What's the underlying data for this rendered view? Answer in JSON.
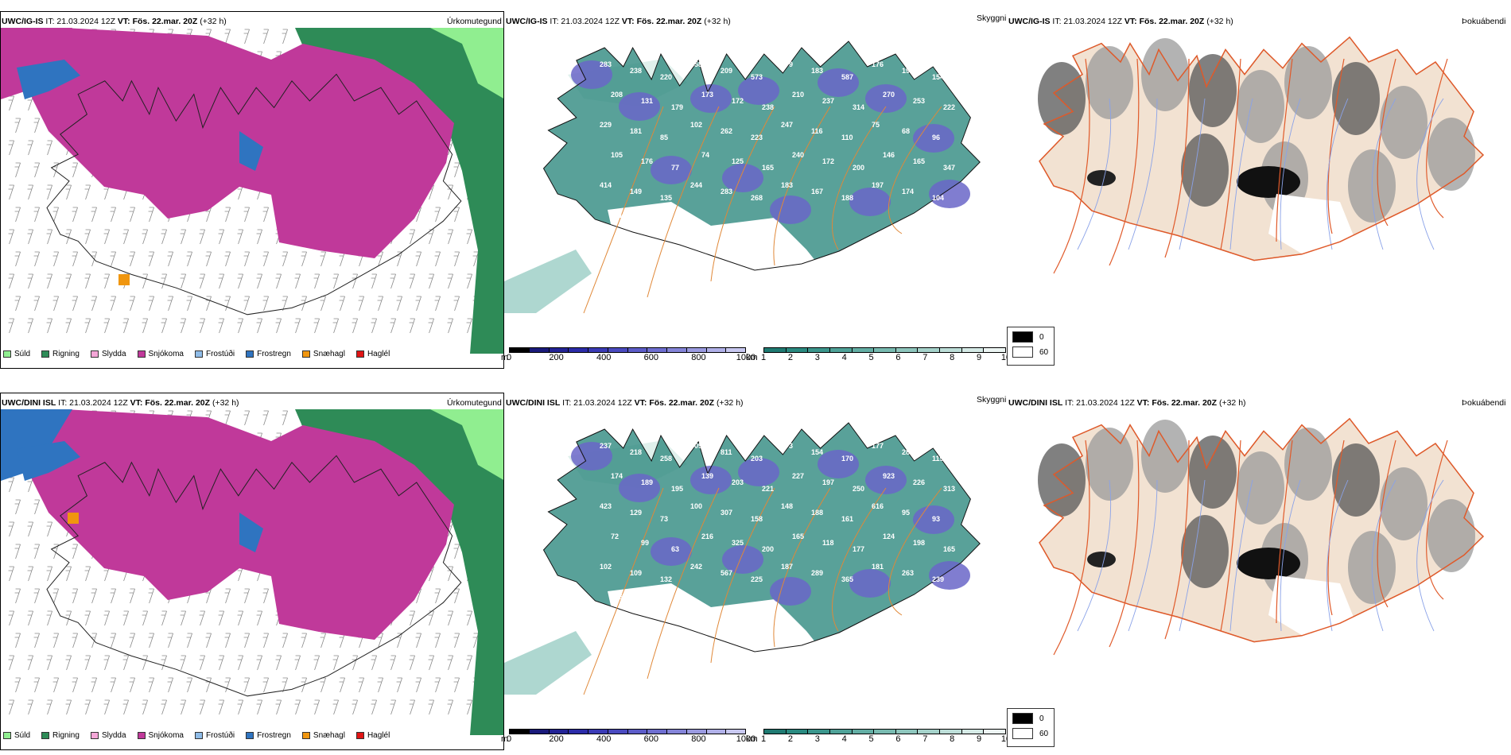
{
  "rows": [
    {
      "model": "UWC/IG-IS",
      "it": "21.03.2024 12Z",
      "vt": "Fös. 22.mar. 20Z",
      "lead": "(+32 h)",
      "cloud_labels": [
        "283",
        "238",
        "220",
        "358",
        "209",
        "573",
        "179",
        "183",
        "587",
        "176",
        "195",
        "154",
        "208",
        "131",
        "179",
        "173",
        "172",
        "238",
        "210",
        "237",
        "314",
        "270",
        "253",
        "222",
        "229",
        "181",
        "85",
        "102",
        "262",
        "223",
        "247",
        "116",
        "110",
        "75",
        "68",
        "96",
        "105",
        "176",
        "77",
        "74",
        "125",
        "165",
        "240",
        "172",
        "200",
        "146",
        "165",
        "347",
        "414",
        "149",
        "135",
        "244",
        "283",
        "268",
        "183",
        "167",
        "188",
        "197",
        "174",
        "104",
        "101",
        "165",
        "112"
      ]
    },
    {
      "model": "UWC/DINI ISL",
      "it": "21.03.2024 12Z",
      "vt": "Fös. 22.mar. 20Z",
      "lead": "(+32 h)",
      "cloud_labels": [
        "237",
        "218",
        "258",
        "709",
        "811",
        "203",
        "173",
        "154",
        "170",
        "177",
        "282",
        "119",
        "174",
        "189",
        "195",
        "139",
        "203",
        "221",
        "227",
        "197",
        "250",
        "923",
        "226",
        "313",
        "423",
        "129",
        "73",
        "100",
        "307",
        "158",
        "148",
        "188",
        "161",
        "616",
        "95",
        "93",
        "72",
        "99",
        "63",
        "216",
        "325",
        "200",
        "165",
        "118",
        "177",
        "124",
        "198",
        "165",
        "102",
        "109",
        "132",
        "242",
        "567",
        "225",
        "187",
        "289",
        "365",
        "181",
        "263",
        "239",
        "246",
        "222",
        "312"
      ]
    }
  ],
  "panel_titles": {
    "precip": "Úrkomutegund",
    "cloud": "Skyggni",
    "fog": "Þokuábendi"
  },
  "precip_legend": [
    {
      "label": "Súld",
      "color": "#90ee90"
    },
    {
      "label": "Rigning",
      "color": "#2e8b57"
    },
    {
      "label": "Slydda",
      "color": "#f4a6d7"
    },
    {
      "label": "Snjókoma",
      "color": "#c0399a"
    },
    {
      "label": "Frostúði",
      "color": "#8fbce8"
    },
    {
      "label": "Frostregn",
      "color": "#2f74c0"
    },
    {
      "label": "Snæhagl",
      "color": "#f0960f"
    },
    {
      "label": "Haglél",
      "color": "#e01414"
    }
  ],
  "colorbar_m": {
    "unit": "m",
    "ticks": [
      "0",
      "200",
      "400",
      "600",
      "800",
      "1000"
    ],
    "colors": [
      "#000000",
      "#1a1a7a",
      "#232395",
      "#2b2ba8",
      "#3a3ab5",
      "#4a4abf",
      "#5c5cc8",
      "#6e6ed0",
      "#8484d8",
      "#9a9ae0",
      "#b0b0e8",
      "#c8c8f0"
    ]
  },
  "colorbar_km": {
    "unit": "km",
    "ticks": [
      "1",
      "2",
      "3",
      "4",
      "5",
      "6",
      "7",
      "8",
      "9",
      "10"
    ],
    "colors": [
      "#1f7a72",
      "#2a8a80",
      "#3b968c",
      "#4fa298",
      "#63aea4",
      "#78bab0",
      "#8ec6bd",
      "#a5d2ca",
      "#bdded8",
      "#d5eae6",
      "#ecf5f3"
    ]
  },
  "fog_key": [
    {
      "label": "0",
      "color": "#000000"
    },
    {
      "label": "60",
      "color": "#ffffff"
    }
  ],
  "colors": {
    "land": "#f2e2d2",
    "road": "#e05a2a",
    "road_orange": "#e08838",
    "river": "#8aa2e8",
    "cloud": "#2f8a80",
    "outline": "#111111"
  }
}
